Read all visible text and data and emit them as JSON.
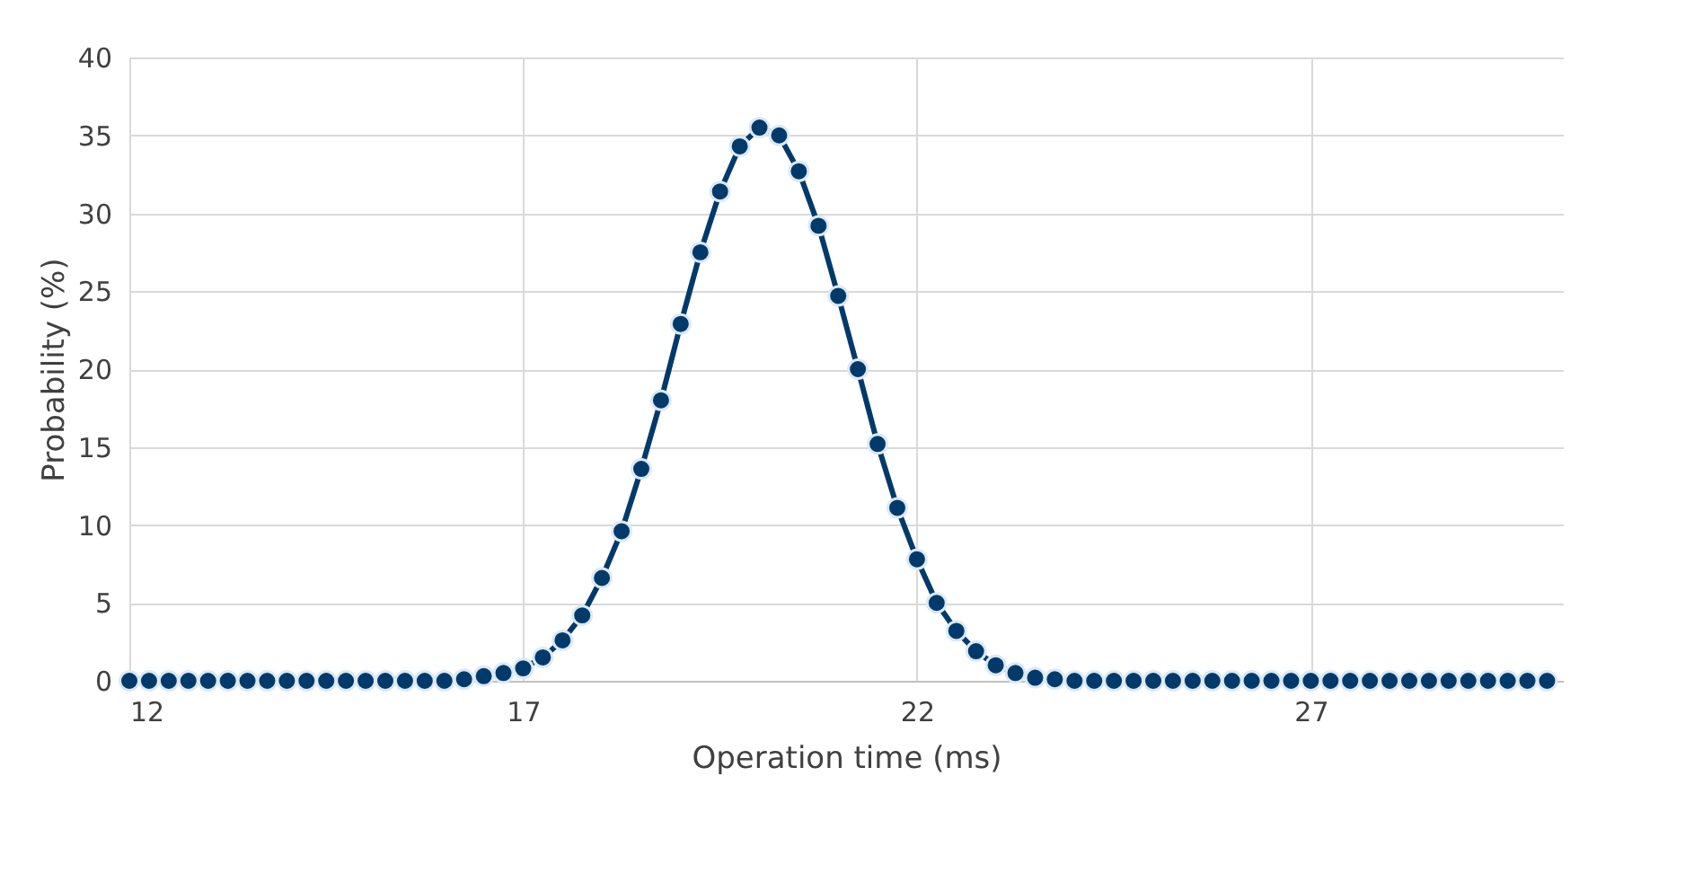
{
  "chart_data": {
    "type": "line",
    "xlabel": "Operation time (ms)",
    "ylabel": "Probability (%)",
    "x": [
      12,
      12.25,
      12.5,
      12.75,
      13,
      13.25,
      13.5,
      13.75,
      14,
      14.25,
      14.5,
      14.75,
      15,
      15.25,
      15.5,
      15.75,
      16,
      16.25,
      16.5,
      16.75,
      17,
      17.25,
      17.5,
      17.75,
      18,
      18.25,
      18.5,
      18.75,
      19,
      19.25,
      19.5,
      19.75,
      20,
      20.25,
      20.5,
      20.75,
      21,
      21.25,
      21.5,
      21.75,
      22,
      22.25,
      22.5,
      22.75,
      23,
      23.25,
      23.5,
      23.75,
      24,
      24.25,
      24.5,
      24.75,
      25,
      25.25,
      25.5,
      25.75,
      26,
      26.25,
      26.5,
      26.75,
      27,
      27.25,
      27.5,
      27.75,
      28,
      28.25,
      28.5,
      28.75,
      29,
      29.25,
      29.5,
      29.75,
      30
    ],
    "series": [
      {
        "color": "#003a6b",
        "values": [
          0,
          0,
          0,
          0,
          0,
          0,
          0,
          0,
          0,
          0,
          0,
          0,
          0,
          0,
          0,
          0,
          0,
          0.1,
          0.3,
          0.5,
          0.8,
          1.5,
          2.6,
          4.2,
          6.6,
          9.6,
          13.6,
          18.0,
          22.9,
          27.5,
          31.4,
          34.3,
          35.5,
          35.0,
          32.7,
          29.2,
          24.7,
          20.0,
          15.2,
          11.1,
          7.8,
          5.0,
          3.2,
          1.9,
          1.0,
          0.5,
          0.2,
          0.1,
          0,
          0,
          0,
          0,
          0,
          0,
          0,
          0,
          0,
          0,
          0,
          0,
          0,
          0,
          0,
          0,
          0,
          0,
          0,
          0,
          0,
          0,
          0,
          0,
          0
        ]
      }
    ],
    "xlim": [
      12,
      30.2
    ],
    "xticks": [
      12,
      17,
      22,
      27
    ],
    "ylim": [
      0,
      40
    ],
    "yticks": [
      0,
      5,
      10,
      15,
      20,
      25,
      30,
      35,
      40
    ],
    "grid": true,
    "marker": "circle",
    "line_style": "solid"
  }
}
